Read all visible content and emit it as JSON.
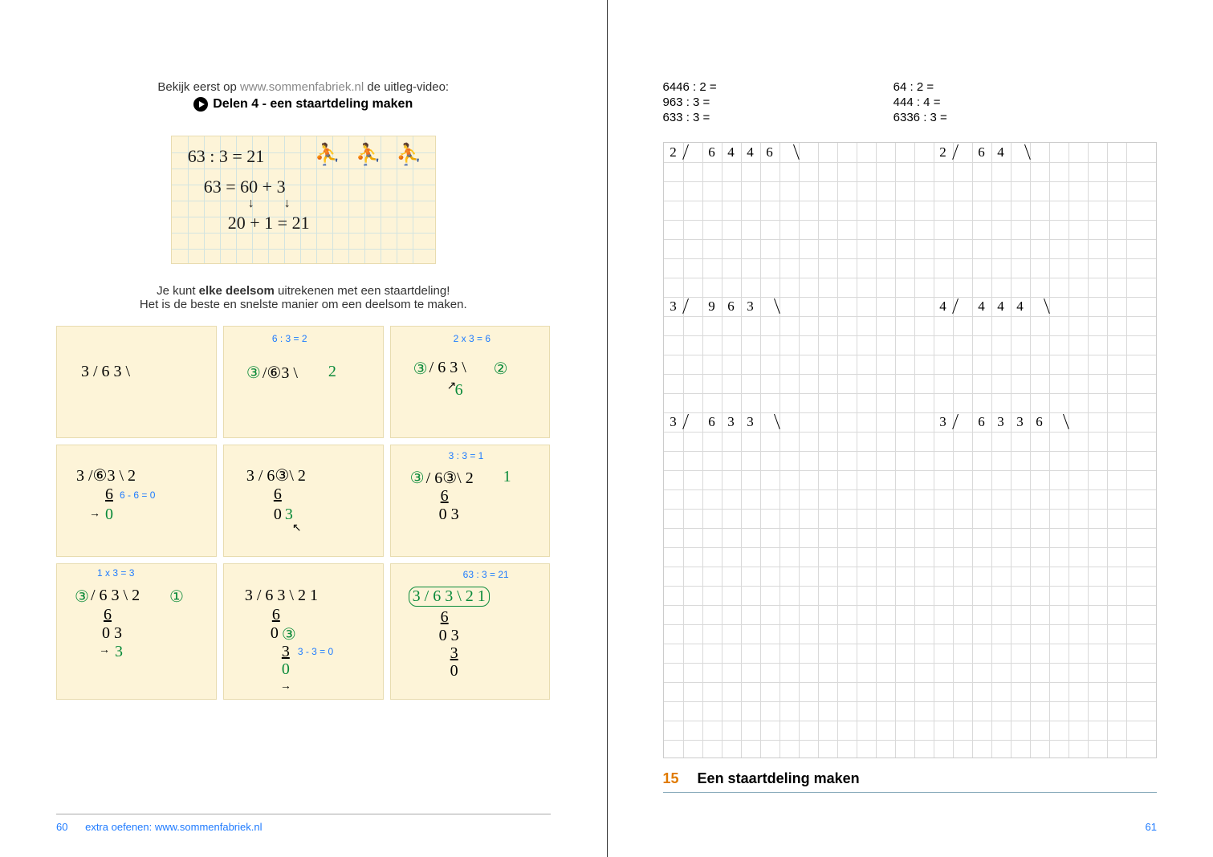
{
  "left": {
    "intro_prefix": "Bekijk eerst op ",
    "intro_url": "www.sommenfabriek.nl",
    "intro_suffix": " de uitleg-video:",
    "video_title": "Delen 4 - een staartdeling maken",
    "note": {
      "line1": "63 : 3 = 21",
      "line2": "63 = 60 + 3",
      "line3": "20 +  1  = 21"
    },
    "explain1_pre": "Je kunt ",
    "explain1_bold": "elke deelsom",
    "explain1_post": " uitrekenen met een staartdeling!",
    "explain2": "Het is de beste en snelste manier om een deelsom te maken.",
    "hints": {
      "h1": "6 : 3 = 2",
      "h2": "2 x 3 = 6",
      "h3": "6 - 6 = 0",
      "h4": "3 : 3 = 1",
      "h5": "1 x 3 = 3",
      "h6": "3 - 3 = 0",
      "h7": "63 : 3 = 21"
    },
    "footer_text": "extra oefenen: www.sommenfabriek.nl",
    "page_num": "60"
  },
  "right": {
    "problems_left": [
      "6446 : 2 =",
      "963 : 3 =",
      "633 : 3 ="
    ],
    "problems_right": [
      "64 : 2 =",
      "444 : 4 =",
      "6336 : 3 ="
    ],
    "grid": {
      "cell_size": 24,
      "cols": 25,
      "section_rows": 8,
      "total_rows": 32,
      "setups": [
        {
          "row": 0,
          "col": 0,
          "divisor": "2",
          "dividend": "6446"
        },
        {
          "row": 0,
          "col": 14,
          "divisor": "2",
          "dividend": "64"
        },
        {
          "row": 8,
          "col": 0,
          "divisor": "3",
          "dividend": "963"
        },
        {
          "row": 8,
          "col": 14,
          "divisor": "4",
          "dividend": "444"
        },
        {
          "row": 14,
          "col": 0,
          "divisor": "3",
          "dividend": "633"
        },
        {
          "row": 14,
          "col": 14,
          "divisor": "3",
          "dividend": "6336"
        }
      ]
    },
    "chapter_num": "15",
    "chapter_title": "Een staartdeling maken",
    "page_num": "61"
  },
  "colors": {
    "blue": "#1f7bff",
    "orange": "#e07a00",
    "grid_line": "#d9d9d9",
    "note_bg": "#fdf4d8"
  }
}
